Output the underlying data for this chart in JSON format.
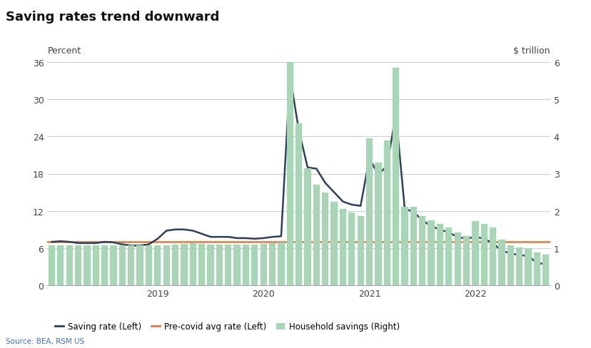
{
  "title": "Saving rates trend downward",
  "ylabel_left": "Percent",
  "ylabel_right": "$ trillion",
  "source": "Source: BEA, RSM US",
  "ylim_left": [
    0,
    36
  ],
  "ylim_right": [
    0,
    6
  ],
  "yticks_left": [
    0,
    6,
    12,
    18,
    24,
    30,
    36
  ],
  "yticks_right": [
    0,
    1,
    2,
    3,
    4,
    5,
    6
  ],
  "pre_covid_avg": 7.0,
  "bar_color": "#a8d5b5",
  "line_color": "#2e3f5c",
  "precovid_line_color": "#e07840",
  "background_color": "#ffffff",
  "saving_rate": [
    7.0,
    7.1,
    7.0,
    6.8,
    6.8,
    6.8,
    7.0,
    6.9,
    6.6,
    6.4,
    6.4,
    6.6,
    7.5,
    8.8,
    9.0,
    9.0,
    8.8,
    8.3,
    7.8,
    7.8,
    7.8,
    7.6,
    7.6,
    7.5,
    7.6,
    7.8,
    7.9,
    33.8,
    25.0,
    19.0,
    18.8,
    16.5,
    15.0,
    13.5,
    13.0,
    12.8,
    20.5,
    17.8,
    19.3,
    27.6,
    12.4,
    11.8,
    10.5,
    9.5,
    9.0,
    8.5,
    7.8,
    7.5,
    7.8,
    7.5,
    6.8,
    5.5,
    5.2,
    4.8,
    4.8,
    3.5,
    3.5
  ],
  "household_savings": [
    1.07,
    1.07,
    1.07,
    1.07,
    1.07,
    1.07,
    1.07,
    1.07,
    1.07,
    1.07,
    1.07,
    1.07,
    1.07,
    1.07,
    1.1,
    1.12,
    1.13,
    1.12,
    1.1,
    1.1,
    1.09,
    1.09,
    1.1,
    1.1,
    1.12,
    1.13,
    1.15,
    6.05,
    4.35,
    3.15,
    2.7,
    2.5,
    2.25,
    2.05,
    1.95,
    1.85,
    3.95,
    3.3,
    3.9,
    5.85,
    2.1,
    2.1,
    1.85,
    1.75,
    1.65,
    1.55,
    1.42,
    1.32,
    1.72,
    1.65,
    1.55,
    1.22,
    1.08,
    1.02,
    0.98,
    0.88,
    0.82
  ],
  "xtick_positions": [
    12,
    24,
    36,
    48
  ],
  "xtick_labels": [
    "2019",
    "2020",
    "2021",
    "2022"
  ],
  "n_months": 57
}
